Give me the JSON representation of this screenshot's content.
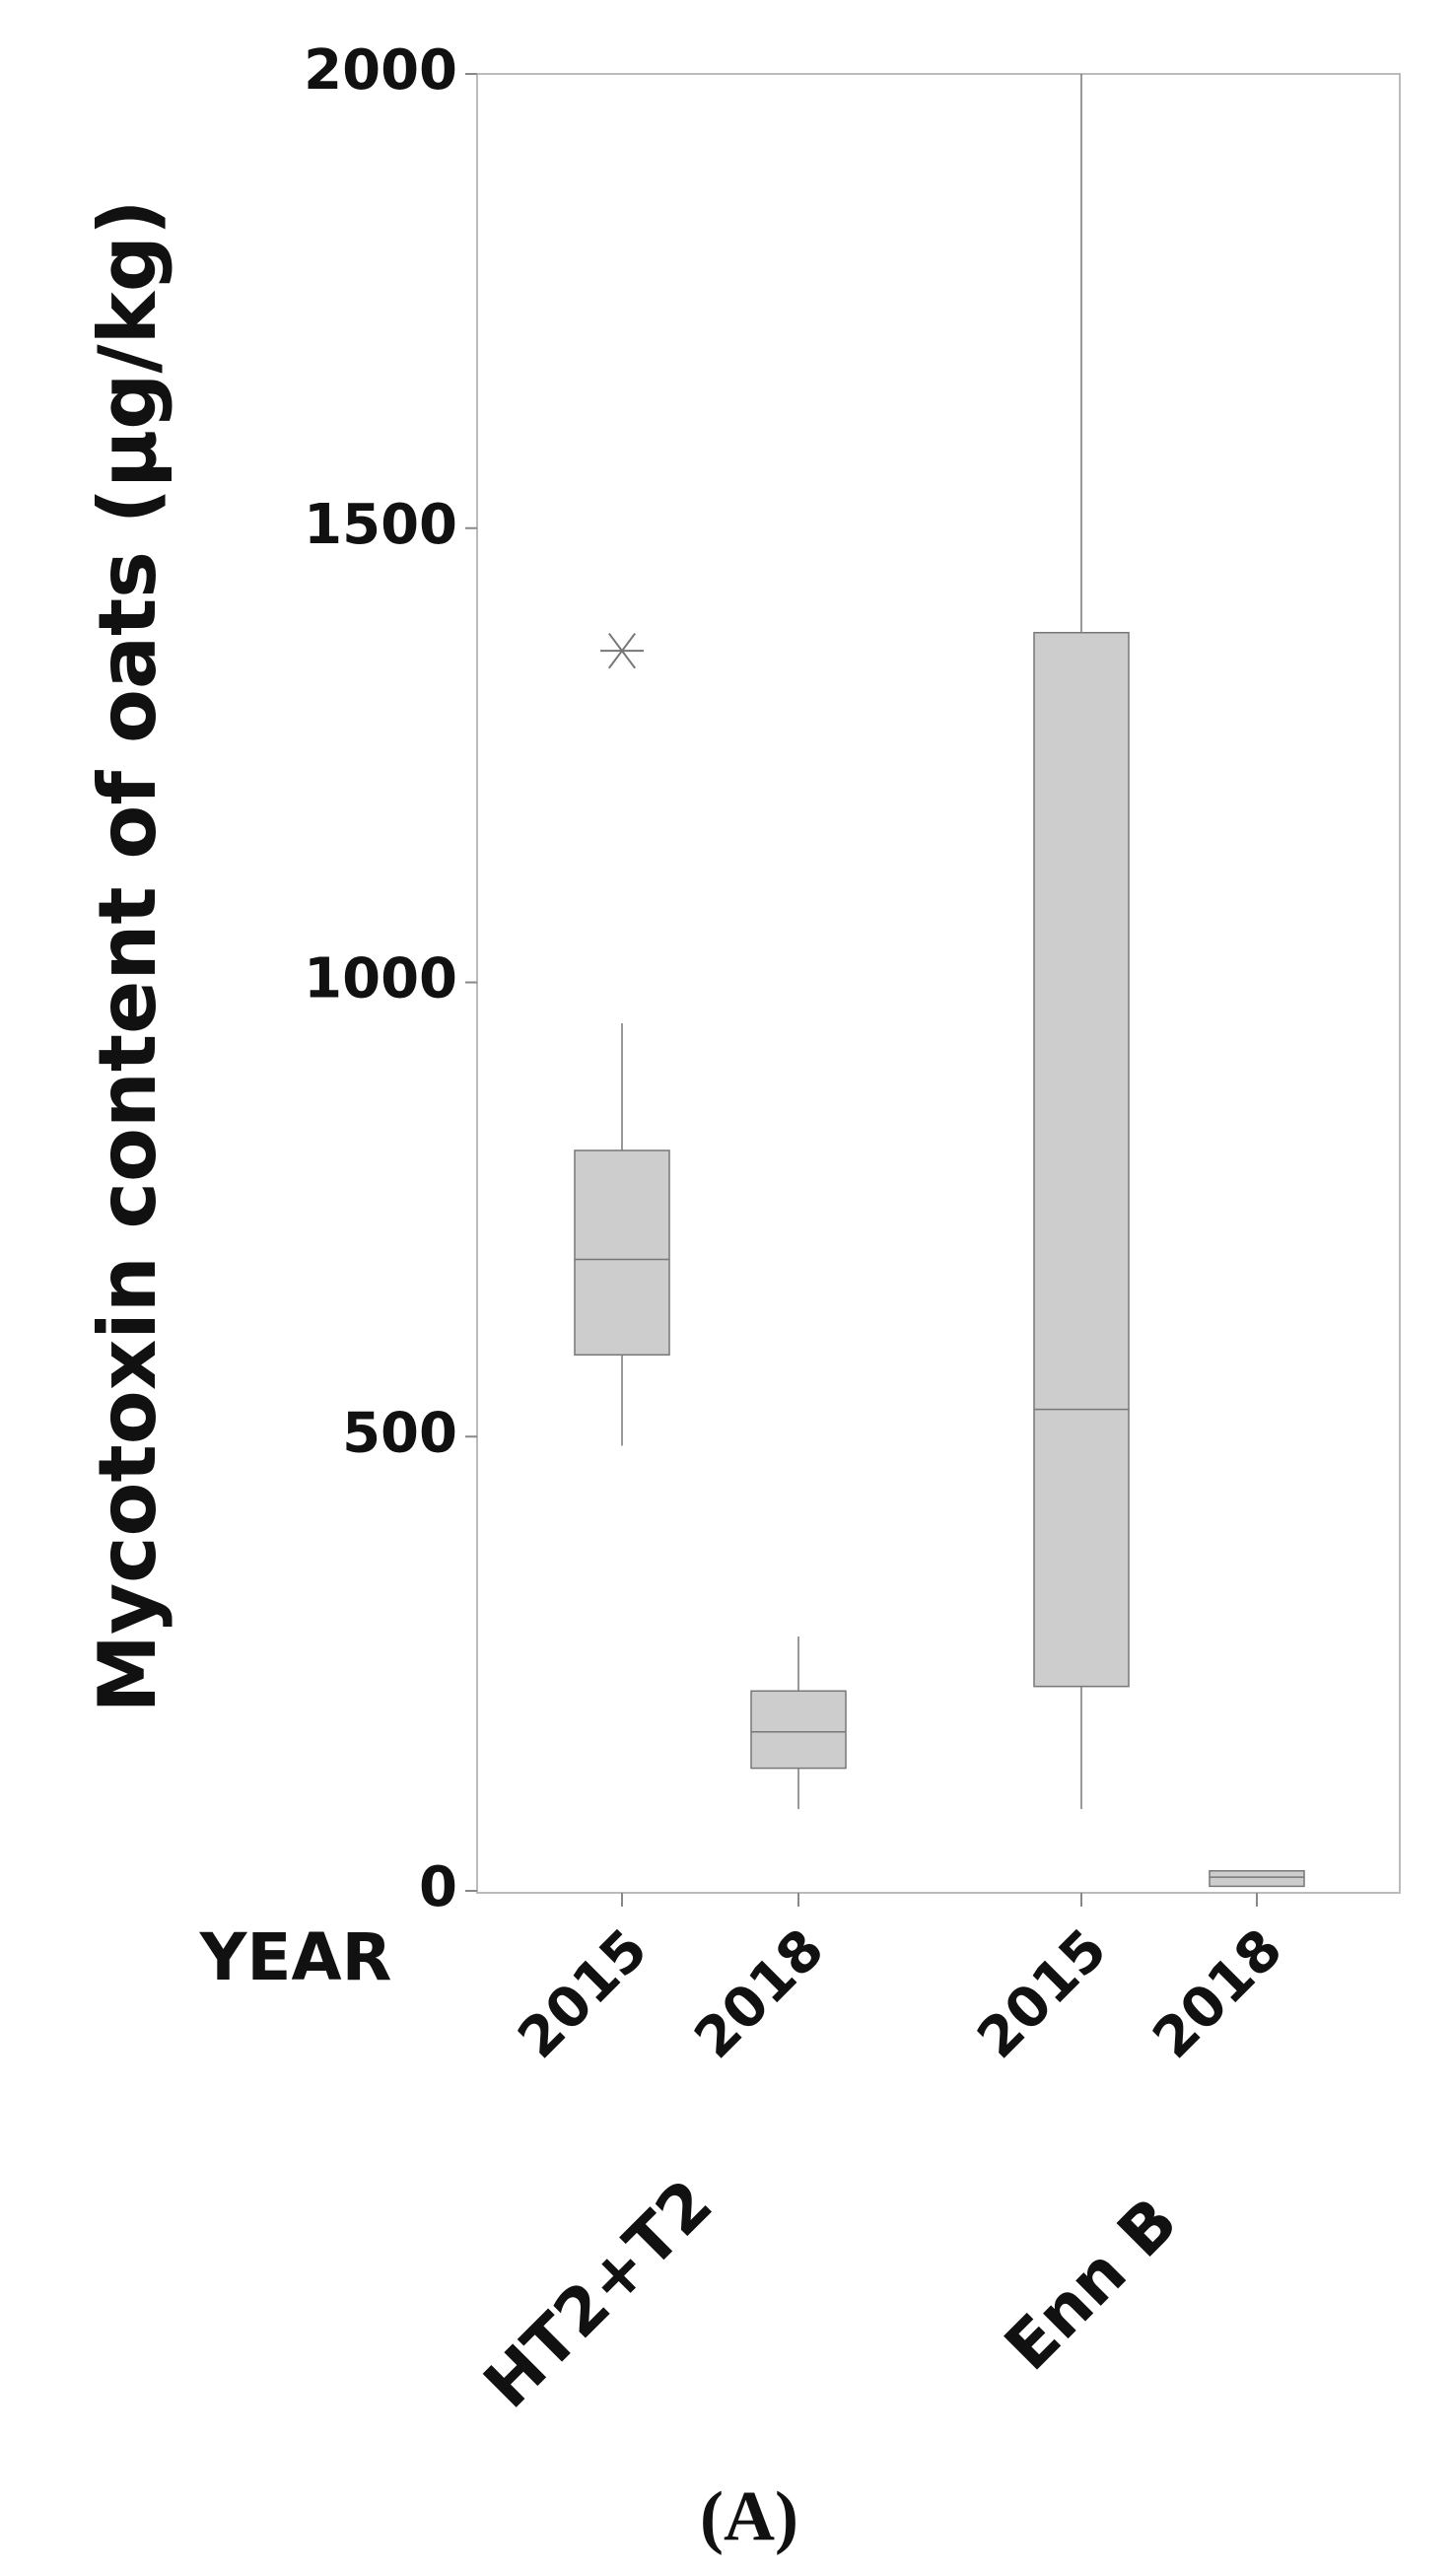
{
  "chart_data": {
    "type": "box",
    "y_label": "Mycotoxin content of oats (µg/kg)",
    "x_label": "YEAR",
    "categories": [
      "2015",
      "2018",
      "2015",
      "2018"
    ],
    "group_labels": [
      "HT2+T2",
      "Enn B"
    ],
    "panel_label": "(A)",
    "color": "#cdcdcd",
    "boxes": [
      {
        "whislo": 490,
        "q1": 590,
        "med": 695,
        "q3": 815,
        "whishi": 955,
        "fliers": [
          1365
        ]
      },
      {
        "whislo": 90,
        "q1": 135,
        "med": 175,
        "q3": 220,
        "whishi": 280,
        "fliers": []
      },
      {
        "whislo": 90,
        "q1": 225,
        "med": 530,
        "q3": 1385,
        "whishi": 2000,
        "fliers": []
      },
      {
        "whislo": 5,
        "q1": 5,
        "med": 15,
        "q3": 22,
        "whishi": 22,
        "fliers": []
      }
    ],
    "ylim": [
      0,
      2000
    ],
    "yticks": [
      0,
      500,
      1000,
      1500,
      2000
    ]
  }
}
